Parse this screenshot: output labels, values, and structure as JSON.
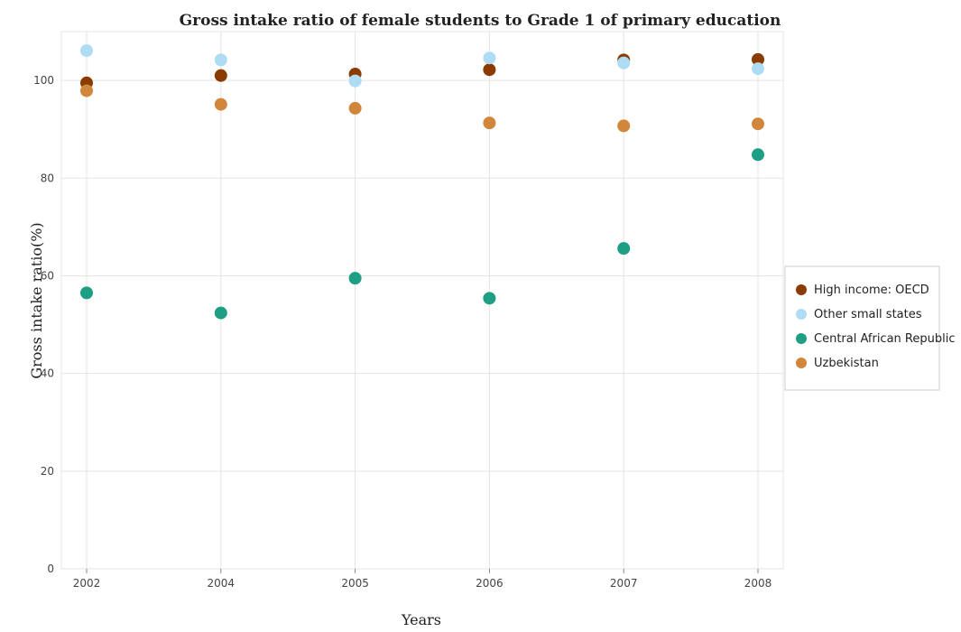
{
  "chart_data": {
    "type": "scatter",
    "title": "Gross intake ratio of female students to Grade 1 of primary education",
    "xlabel": "Years",
    "ylabel": "Gross intake ratio(%)",
    "categories": [
      "2002",
      "2004",
      "2005",
      "2006",
      "2007",
      "2008"
    ],
    "ylim": [
      0,
      110
    ],
    "yticks": [
      0,
      20,
      40,
      60,
      80,
      100
    ],
    "grid": true,
    "legend_position": "right",
    "series": [
      {
        "name": "High income: OECD",
        "color": "#8B3A00",
        "values": [
          99.5,
          101.0,
          101.3,
          102.2,
          104.2,
          104.3
        ]
      },
      {
        "name": "Other small states",
        "color": "#AEDCF5",
        "values": [
          106.1,
          104.2,
          99.9,
          104.6,
          103.6,
          102.4
        ]
      },
      {
        "name": "Central African Republic",
        "color": "#1E9E82",
        "values": [
          56.5,
          52.4,
          59.5,
          55.4,
          65.6,
          84.8
        ]
      },
      {
        "name": "Uzbekistan",
        "color": "#D2863C",
        "values": [
          97.9,
          95.1,
          94.3,
          91.3,
          90.7,
          91.1
        ]
      }
    ]
  }
}
